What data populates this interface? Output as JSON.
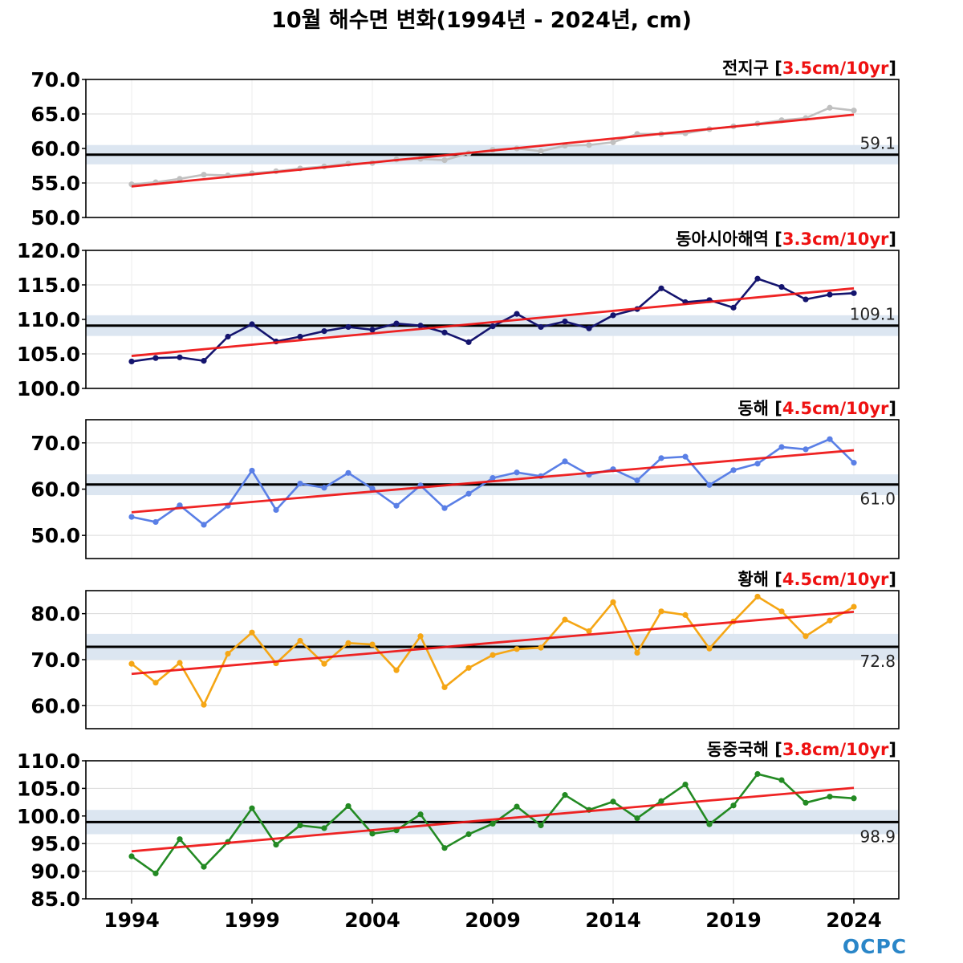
{
  "title": "10월 해수면 변화(1994년 - 2024년, cm)",
  "logo": {
    "text": "OCPC",
    "color": "#2a86c8"
  },
  "colors": {
    "trend": "#ee1111",
    "mean": "#000000",
    "band": "#dce6f1",
    "trend_label": "#ee1111"
  },
  "chart_data": [
    {
      "type": "line",
      "name": "전지구",
      "trend_label": "3.5cm/10yr",
      "color": "#c0c0c0",
      "ylim": [
        50,
        70
      ],
      "yticks": [
        "50.0",
        "55.0",
        "60.0",
        "65.0",
        "70.0"
      ],
      "mean": 59.1,
      "mean_label": "59.1",
      "band": [
        57.7,
        60.5
      ],
      "trend": [
        54.5,
        64.9
      ],
      "x": [
        1994,
        1995,
        1996,
        1997,
        1998,
        1999,
        2000,
        2001,
        2002,
        2003,
        2004,
        2005,
        2006,
        2007,
        2008,
        2009,
        2010,
        2011,
        2012,
        2013,
        2014,
        2015,
        2016,
        2017,
        2018,
        2019,
        2020,
        2021,
        2022,
        2023,
        2024
      ],
      "values": [
        54.8,
        55.1,
        55.6,
        56.2,
        56.1,
        56.4,
        56.7,
        57.1,
        57.4,
        57.8,
        57.9,
        58.4,
        58.5,
        58.3,
        59.3,
        59.8,
        60.0,
        59.6,
        60.4,
        60.5,
        60.9,
        62.1,
        62.1,
        62.2,
        62.8,
        63.2,
        63.6,
        64.1,
        64.4,
        65.9,
        65.5
      ]
    },
    {
      "type": "line",
      "name": "동아시아해역",
      "trend_label": "3.3cm/10yr",
      "color": "#14146e",
      "ylim": [
        100,
        120
      ],
      "yticks": [
        "100.0",
        "105.0",
        "110.0",
        "115.0",
        "120.0"
      ],
      "mean": 109.1,
      "mean_label": "109.1",
      "band": [
        107.6,
        110.6
      ],
      "trend": [
        104.7,
        114.5
      ],
      "x": [
        1994,
        1995,
        1996,
        1997,
        1998,
        1999,
        2000,
        2001,
        2002,
        2003,
        2004,
        2005,
        2006,
        2007,
        2008,
        2009,
        2010,
        2011,
        2012,
        2013,
        2014,
        2015,
        2016,
        2017,
        2018,
        2019,
        2020,
        2021,
        2022,
        2023,
        2024
      ],
      "values": [
        103.9,
        104.4,
        104.5,
        104.0,
        107.5,
        109.3,
        106.8,
        107.5,
        108.3,
        108.9,
        108.5,
        109.4,
        109.1,
        108.1,
        106.7,
        109.0,
        110.8,
        108.9,
        109.7,
        108.7,
        110.6,
        111.5,
        114.5,
        112.5,
        112.8,
        111.7,
        115.9,
        114.7,
        112.9,
        113.6,
        113.8
      ]
    },
    {
      "type": "line",
      "name": "동해",
      "trend_label": "4.5cm/10yr",
      "color": "#5a7fe6",
      "ylim": [
        45,
        75
      ],
      "yticks": [
        "50.0",
        "60.0",
        "70.0"
      ],
      "mean": 61.0,
      "mean_label": "61.0",
      "band": [
        58.7,
        63.2
      ],
      "trend": [
        55.0,
        68.4
      ],
      "x": [
        1994,
        1995,
        1996,
        1997,
        1998,
        1999,
        2000,
        2001,
        2002,
        2003,
        2004,
        2005,
        2006,
        2007,
        2008,
        2009,
        2010,
        2011,
        2012,
        2013,
        2014,
        2015,
        2016,
        2017,
        2018,
        2019,
        2020,
        2021,
        2022,
        2023,
        2024
      ],
      "values": [
        54.0,
        52.9,
        56.5,
        52.3,
        56.4,
        64.0,
        55.5,
        61.2,
        60.3,
        63.5,
        60.1,
        56.4,
        60.8,
        55.9,
        59.0,
        62.4,
        63.6,
        62.8,
        66.0,
        63.1,
        64.3,
        61.9,
        66.7,
        67.0,
        60.9,
        64.1,
        65.5,
        69.1,
        68.6,
        70.8,
        65.7
      ]
    },
    {
      "type": "line",
      "name": "황해",
      "trend_label": "4.5cm/10yr",
      "color": "#f5a615",
      "ylim": [
        55,
        85
      ],
      "yticks": [
        "60.0",
        "70.0",
        "80.0"
      ],
      "mean": 72.8,
      "mean_label": "72.8",
      "band": [
        70.0,
        75.6
      ],
      "trend": [
        66.9,
        80.4
      ],
      "x": [
        1994,
        1995,
        1996,
        1997,
        1998,
        1999,
        2000,
        2001,
        2002,
        2003,
        2004,
        2005,
        2006,
        2007,
        2008,
        2009,
        2010,
        2011,
        2012,
        2013,
        2014,
        2015,
        2016,
        2017,
        2018,
        2019,
        2020,
        2021,
        2022,
        2023,
        2024
      ],
      "values": [
        69.1,
        65.0,
        69.3,
        60.2,
        71.3,
        75.9,
        69.2,
        74.1,
        69.1,
        73.6,
        73.3,
        67.7,
        75.1,
        64.0,
        68.2,
        71.0,
        72.3,
        72.6,
        78.7,
        76.2,
        82.5,
        71.5,
        80.5,
        79.7,
        72.4,
        78.3,
        83.7,
        80.5,
        75.1,
        78.5,
        81.5
      ]
    },
    {
      "type": "line",
      "name": "동중국해",
      "trend_label": "3.8cm/10yr",
      "color": "#238a23",
      "ylim": [
        85,
        110
      ],
      "yticks": [
        "85.0",
        "90.0",
        "95.0",
        "100.0",
        "105.0",
        "110.0"
      ],
      "mean": 98.9,
      "mean_label": "98.9",
      "band": [
        96.7,
        101.1
      ],
      "trend": [
        93.6,
        105.1
      ],
      "xlabel": "",
      "ylabel": "",
      "xticks": [
        "1994",
        "1999",
        "2004",
        "2009",
        "2014",
        "2019",
        "2024"
      ],
      "x": [
        1994,
        1995,
        1996,
        1997,
        1998,
        1999,
        2000,
        2001,
        2002,
        2003,
        2004,
        2005,
        2006,
        2007,
        2008,
        2009,
        2010,
        2011,
        2012,
        2013,
        2014,
        2015,
        2016,
        2017,
        2018,
        2019,
        2020,
        2021,
        2022,
        2023,
        2024
      ],
      "values": [
        92.7,
        89.6,
        95.8,
        90.8,
        95.3,
        101.4,
        94.8,
        98.3,
        97.8,
        101.8,
        96.8,
        97.4,
        100.3,
        94.2,
        96.7,
        98.6,
        101.7,
        98.3,
        103.8,
        101.1,
        102.6,
        99.6,
        102.7,
        105.7,
        98.5,
        101.9,
        107.6,
        106.5,
        102.4,
        103.5,
        103.2
      ]
    }
  ]
}
